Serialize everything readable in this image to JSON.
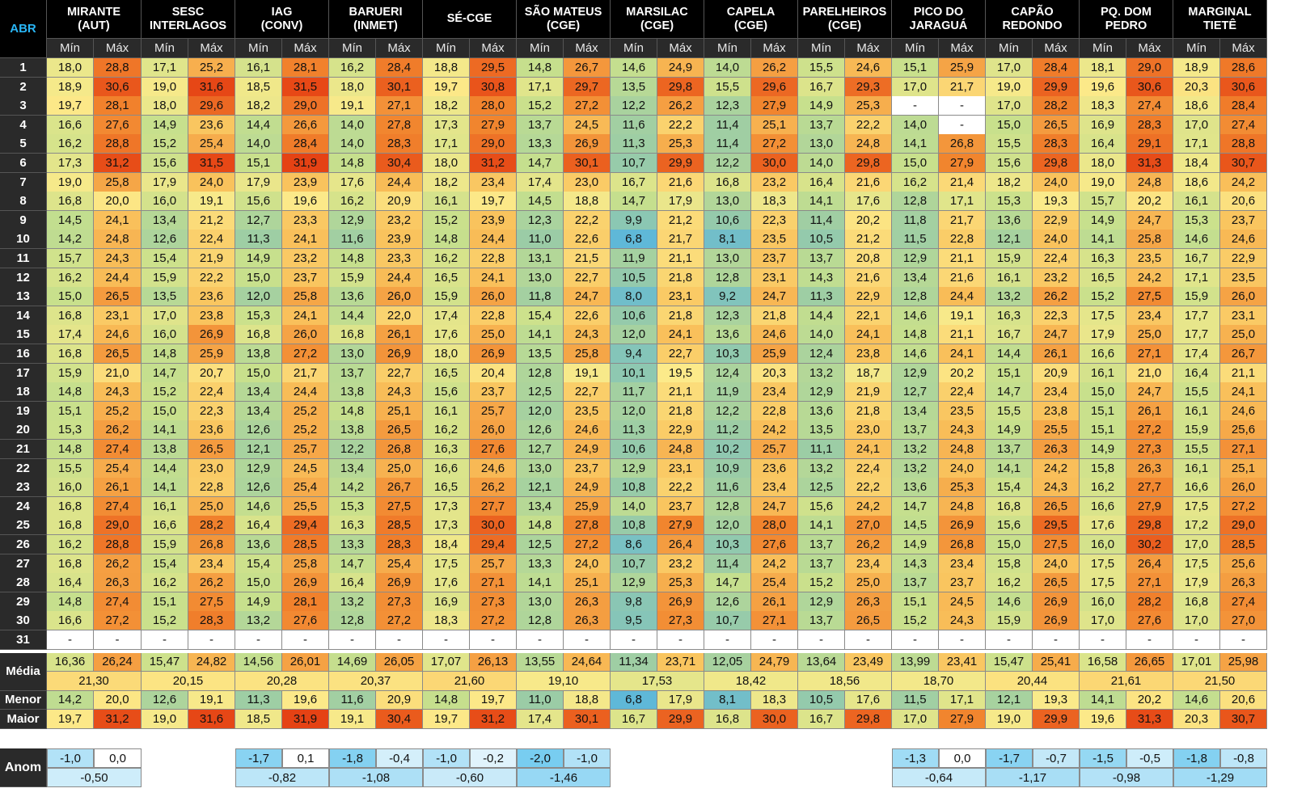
{
  "corner_label": "ABR",
  "col_min_label": "Mín",
  "col_max_label": "Máx",
  "stations": [
    {
      "name": [
        "MIRANTE",
        "(AUT)"
      ]
    },
    {
      "name": [
        "SESC",
        "INTERLAGOS"
      ]
    },
    {
      "name": [
        "IAG",
        "(CONV)"
      ]
    },
    {
      "name": [
        "BARUERI",
        "(INMET)"
      ]
    },
    {
      "name": [
        "SÉ-CGE"
      ]
    },
    {
      "name": [
        "SÃO MATEUS",
        "(CGE)"
      ]
    },
    {
      "name": [
        "MARSILAC",
        "(CGE)"
      ]
    },
    {
      "name": [
        "CAPELA",
        "(CGE)"
      ]
    },
    {
      "name": [
        "PARELHEIROS",
        "(CGE)"
      ]
    },
    {
      "name": [
        "PICO DO",
        "JARAGUÁ"
      ]
    },
    {
      "name": [
        "CAPÃO",
        "REDONDO"
      ]
    },
    {
      "name": [
        "PQ. DOM",
        "PEDRO"
      ]
    },
    {
      "name": [
        "MARGINAL",
        "TIETÊ"
      ]
    }
  ],
  "days": [
    "1",
    "2",
    "3",
    "4",
    "5",
    "6",
    "7",
    "8",
    "9",
    "10",
    "11",
    "12",
    "13",
    "14",
    "15",
    "16",
    "17",
    "18",
    "19",
    "20",
    "21",
    "22",
    "23",
    "24",
    "25",
    "26",
    "27",
    "28",
    "29",
    "30",
    "31"
  ],
  "rows": [
    [
      "18,0",
      "28,8",
      "17,1",
      "25,2",
      "16,1",
      "28,1",
      "16,2",
      "28,4",
      "18,8",
      "29,5",
      "14,8",
      "26,7",
      "14,6",
      "24,9",
      "14,0",
      "26,2",
      "15,5",
      "24,6",
      "15,1",
      "25,9",
      "17,0",
      "28,4",
      "18,1",
      "29,0",
      "18,9",
      "28,6"
    ],
    [
      "18,9",
      "30,6",
      "19,0",
      "31,6",
      "18,5",
      "31,5",
      "18,0",
      "30,1",
      "19,7",
      "30,8",
      "17,1",
      "29,7",
      "13,5",
      "29,8",
      "15,5",
      "29,6",
      "16,7",
      "29,3",
      "17,0",
      "21,7",
      "19,0",
      "29,9",
      "19,6",
      "30,6",
      "20,3",
      "30,6"
    ],
    [
      "19,7",
      "28,1",
      "18,0",
      "29,6",
      "18,2",
      "29,0",
      "19,1",
      "27,1",
      "18,2",
      "28,0",
      "15,2",
      "27,2",
      "12,2",
      "26,2",
      "12,3",
      "27,9",
      "14,9",
      "25,3",
      "-",
      "-",
      "17,0",
      "28,2",
      "18,3",
      "27,4",
      "18,6",
      "28,4"
    ],
    [
      "16,6",
      "27,6",
      "14,9",
      "23,6",
      "14,4",
      "26,6",
      "14,0",
      "27,8",
      "17,3",
      "27,9",
      "13,7",
      "24,5",
      "11,6",
      "22,2",
      "11,4",
      "25,1",
      "13,7",
      "22,2",
      "14,0",
      "-",
      "15,0",
      "26,5",
      "16,9",
      "28,3",
      "17,0",
      "27,4"
    ],
    [
      "16,2",
      "28,8",
      "15,2",
      "25,4",
      "14,0",
      "28,4",
      "14,0",
      "28,3",
      "17,1",
      "29,0",
      "13,3",
      "26,9",
      "11,3",
      "25,3",
      "11,4",
      "27,2",
      "13,0",
      "24,8",
      "14,1",
      "26,8",
      "15,5",
      "28,3",
      "16,4",
      "29,1",
      "17,1",
      "28,8"
    ],
    [
      "17,3",
      "31,2",
      "15,6",
      "31,5",
      "15,1",
      "31,9",
      "14,8",
      "30,4",
      "18,0",
      "31,2",
      "14,7",
      "30,1",
      "10,7",
      "29,9",
      "12,2",
      "30,0",
      "14,0",
      "29,8",
      "15,0",
      "27,9",
      "15,6",
      "29,8",
      "18,0",
      "31,3",
      "18,4",
      "30,7"
    ],
    [
      "19,0",
      "25,8",
      "17,9",
      "24,0",
      "17,9",
      "23,9",
      "17,6",
      "24,4",
      "18,2",
      "23,4",
      "17,4",
      "23,0",
      "16,7",
      "21,6",
      "16,8",
      "23,2",
      "16,4",
      "21,6",
      "16,2",
      "21,4",
      "18,2",
      "24,0",
      "19,0",
      "24,8",
      "18,6",
      "24,2"
    ],
    [
      "16,8",
      "20,0",
      "16,0",
      "19,1",
      "15,6",
      "19,6",
      "16,2",
      "20,9",
      "16,1",
      "19,7",
      "14,5",
      "18,8",
      "14,7",
      "17,9",
      "13,0",
      "18,3",
      "14,1",
      "17,6",
      "12,8",
      "17,1",
      "15,3",
      "19,3",
      "15,7",
      "20,2",
      "16,1",
      "20,6"
    ],
    [
      "14,5",
      "24,1",
      "13,4",
      "21,2",
      "12,7",
      "23,3",
      "12,9",
      "23,2",
      "15,2",
      "23,9",
      "12,3",
      "22,2",
      "9,9",
      "21,2",
      "10,6",
      "22,3",
      "11,4",
      "20,2",
      "11,8",
      "21,7",
      "13,6",
      "22,9",
      "14,9",
      "24,7",
      "15,3",
      "23,7"
    ],
    [
      "14,2",
      "24,8",
      "12,6",
      "22,4",
      "11,3",
      "24,1",
      "11,6",
      "23,9",
      "14,8",
      "24,4",
      "11,0",
      "22,6",
      "6,8",
      "21,7",
      "8,1",
      "23,5",
      "10,5",
      "21,2",
      "11,5",
      "22,8",
      "12,1",
      "24,0",
      "14,1",
      "25,8",
      "14,6",
      "24,6"
    ],
    [
      "15,7",
      "24,3",
      "15,4",
      "21,9",
      "14,9",
      "23,2",
      "14,8",
      "23,3",
      "16,2",
      "22,8",
      "13,1",
      "21,5",
      "11,9",
      "21,1",
      "13,0",
      "23,7",
      "13,7",
      "20,8",
      "12,9",
      "21,1",
      "15,9",
      "22,4",
      "16,3",
      "23,5",
      "16,7",
      "22,9"
    ],
    [
      "16,2",
      "24,4",
      "15,9",
      "22,2",
      "15,0",
      "23,7",
      "15,9",
      "24,4",
      "16,5",
      "24,1",
      "13,0",
      "22,7",
      "10,5",
      "21,8",
      "12,8",
      "23,1",
      "14,3",
      "21,6",
      "13,4",
      "21,6",
      "16,1",
      "23,2",
      "16,5",
      "24,2",
      "17,1",
      "23,5"
    ],
    [
      "15,0",
      "26,5",
      "13,5",
      "23,6",
      "12,0",
      "25,8",
      "13,6",
      "26,0",
      "15,9",
      "26,0",
      "11,8",
      "24,7",
      "8,0",
      "23,1",
      "9,2",
      "24,7",
      "11,3",
      "22,9",
      "12,8",
      "24,4",
      "13,2",
      "26,2",
      "15,2",
      "27,5",
      "15,9",
      "26,0"
    ],
    [
      "16,8",
      "23,1",
      "17,0",
      "23,8",
      "15,3",
      "24,1",
      "14,4",
      "22,0",
      "17,4",
      "22,8",
      "15,4",
      "22,6",
      "10,6",
      "21,8",
      "12,3",
      "21,8",
      "14,4",
      "22,1",
      "14,6",
      "19,1",
      "16,3",
      "22,3",
      "17,5",
      "23,4",
      "17,7",
      "23,1"
    ],
    [
      "17,4",
      "24,6",
      "16,0",
      "26,9",
      "16,8",
      "26,0",
      "16,8",
      "26,1",
      "17,6",
      "25,0",
      "14,1",
      "24,3",
      "12,0",
      "24,1",
      "13,6",
      "24,6",
      "14,0",
      "24,1",
      "14,8",
      "21,1",
      "16,7",
      "24,7",
      "17,9",
      "25,0",
      "17,7",
      "25,0"
    ],
    [
      "16,8",
      "26,5",
      "14,8",
      "25,9",
      "13,8",
      "27,2",
      "13,0",
      "26,9",
      "18,0",
      "26,9",
      "13,5",
      "25,8",
      "9,4",
      "22,7",
      "10,3",
      "25,9",
      "12,4",
      "23,8",
      "14,6",
      "24,1",
      "14,4",
      "26,1",
      "16,6",
      "27,1",
      "17,4",
      "26,7"
    ],
    [
      "15,9",
      "21,0",
      "14,7",
      "20,7",
      "15,0",
      "21,7",
      "13,7",
      "22,7",
      "16,5",
      "20,4",
      "12,8",
      "19,1",
      "10,1",
      "19,5",
      "12,4",
      "20,3",
      "13,2",
      "18,7",
      "12,9",
      "20,2",
      "15,1",
      "20,9",
      "16,1",
      "21,0",
      "16,4",
      "21,1"
    ],
    [
      "14,8",
      "24,3",
      "15,2",
      "22,4",
      "13,4",
      "24,4",
      "13,8",
      "24,3",
      "15,6",
      "23,7",
      "12,5",
      "22,7",
      "11,7",
      "21,1",
      "11,9",
      "23,4",
      "12,9",
      "21,9",
      "12,7",
      "22,4",
      "14,7",
      "23,4",
      "15,0",
      "24,7",
      "15,5",
      "24,1"
    ],
    [
      "15,1",
      "25,2",
      "15,0",
      "22,3",
      "13,4",
      "25,2",
      "14,8",
      "25,1",
      "16,1",
      "25,7",
      "12,0",
      "23,5",
      "12,0",
      "21,8",
      "12,2",
      "22,8",
      "13,6",
      "21,8",
      "13,4",
      "23,5",
      "15,5",
      "23,8",
      "15,1",
      "26,1",
      "16,1",
      "24,6"
    ],
    [
      "15,3",
      "26,2",
      "14,1",
      "23,6",
      "12,6",
      "25,2",
      "13,8",
      "26,5",
      "16,2",
      "26,0",
      "12,6",
      "24,6",
      "11,3",
      "22,9",
      "11,2",
      "24,2",
      "13,5",
      "23,0",
      "13,7",
      "24,3",
      "14,9",
      "25,5",
      "15,1",
      "27,2",
      "15,9",
      "25,6"
    ],
    [
      "14,8",
      "27,4",
      "13,8",
      "26,5",
      "12,1",
      "25,7",
      "12,2",
      "26,8",
      "16,3",
      "27,6",
      "12,7",
      "24,9",
      "10,6",
      "24,8",
      "10,2",
      "25,7",
      "11,1",
      "24,1",
      "13,2",
      "24,8",
      "13,7",
      "26,3",
      "14,9",
      "27,3",
      "15,5",
      "27,1"
    ],
    [
      "15,5",
      "25,4",
      "14,4",
      "23,0",
      "12,9",
      "24,5",
      "13,4",
      "25,0",
      "16,6",
      "24,6",
      "13,0",
      "23,7",
      "12,9",
      "23,1",
      "10,9",
      "23,6",
      "13,2",
      "22,4",
      "13,2",
      "24,0",
      "14,1",
      "24,2",
      "15,8",
      "26,3",
      "16,1",
      "25,1"
    ],
    [
      "16,0",
      "26,1",
      "14,1",
      "22,8",
      "12,6",
      "25,4",
      "14,2",
      "26,7",
      "16,5",
      "26,2",
      "12,1",
      "24,9",
      "10,8",
      "22,2",
      "11,6",
      "23,4",
      "12,5",
      "22,2",
      "13,6",
      "25,3",
      "15,4",
      "24,3",
      "16,2",
      "27,7",
      "16,6",
      "26,0"
    ],
    [
      "16,8",
      "27,4",
      "16,1",
      "25,0",
      "14,6",
      "25,5",
      "15,3",
      "27,5",
      "17,3",
      "27,7",
      "13,4",
      "25,9",
      "14,0",
      "23,7",
      "12,8",
      "24,7",
      "15,6",
      "24,2",
      "14,7",
      "24,8",
      "16,8",
      "26,5",
      "16,6",
      "27,9",
      "17,5",
      "27,2"
    ],
    [
      "16,8",
      "29,0",
      "16,6",
      "28,2",
      "16,4",
      "29,4",
      "16,3",
      "28,5",
      "17,3",
      "30,0",
      "14,8",
      "27,8",
      "10,8",
      "27,9",
      "12,0",
      "28,0",
      "14,1",
      "27,0",
      "14,5",
      "26,9",
      "15,6",
      "29,5",
      "17,6",
      "29,8",
      "17,2",
      "29,0"
    ],
    [
      "16,2",
      "28,8",
      "15,9",
      "26,8",
      "13,6",
      "28,5",
      "13,3",
      "28,3",
      "18,4",
      "29,4",
      "12,5",
      "27,2",
      "8,6",
      "26,4",
      "10,3",
      "27,6",
      "13,7",
      "26,2",
      "14,9",
      "26,8",
      "15,0",
      "27,5",
      "16,0",
      "30,2",
      "17,0",
      "28,5"
    ],
    [
      "16,8",
      "26,2",
      "15,4",
      "23,4",
      "15,4",
      "25,8",
      "14,7",
      "25,4",
      "17,5",
      "25,7",
      "13,3",
      "24,0",
      "10,7",
      "23,2",
      "11,4",
      "24,2",
      "13,7",
      "23,4",
      "14,3",
      "23,4",
      "15,8",
      "24,0",
      "17,5",
      "26,4",
      "17,5",
      "25,6"
    ],
    [
      "16,4",
      "26,3",
      "16,2",
      "26,2",
      "15,0",
      "26,9",
      "16,4",
      "26,9",
      "17,6",
      "27,1",
      "14,1",
      "25,1",
      "12,9",
      "25,3",
      "14,7",
      "25,4",
      "15,2",
      "25,0",
      "13,7",
      "23,7",
      "16,2",
      "26,5",
      "17,5",
      "27,1",
      "17,9",
      "26,3"
    ],
    [
      "14,8",
      "27,4",
      "15,1",
      "27,5",
      "14,9",
      "28,1",
      "13,2",
      "27,3",
      "16,9",
      "27,3",
      "13,0",
      "26,3",
      "9,8",
      "26,9",
      "12,6",
      "26,1",
      "12,9",
      "26,3",
      "15,1",
      "24,5",
      "14,6",
      "26,9",
      "16,0",
      "28,2",
      "16,8",
      "27,4"
    ],
    [
      "16,6",
      "27,2",
      "15,2",
      "28,3",
      "13,2",
      "27,6",
      "12,8",
      "27,2",
      "18,3",
      "27,2",
      "12,8",
      "26,3",
      "9,5",
      "27,3",
      "10,7",
      "27,1",
      "13,7",
      "26,5",
      "15,2",
      "24,3",
      "15,9",
      "26,9",
      "17,0",
      "27,6",
      "17,0",
      "27,0"
    ],
    [
      "-",
      "-",
      "-",
      "-",
      "-",
      "-",
      "-",
      "-",
      "-",
      "-",
      "-",
      "-",
      "-",
      "-",
      "-",
      "-",
      "-",
      "-",
      "-",
      "-",
      "-",
      "-",
      "-",
      "-",
      "-",
      "-"
    ]
  ],
  "summary": {
    "media_label": "Média",
    "media": [
      "16,36",
      "26,24",
      "15,47",
      "24,82",
      "14,56",
      "26,01",
      "14,69",
      "26,05",
      "17,07",
      "26,13",
      "13,55",
      "24,64",
      "11,34",
      "23,71",
      "12,05",
      "24,79",
      "13,64",
      "23,49",
      "13,99",
      "23,41",
      "15,47",
      "25,41",
      "16,58",
      "26,65",
      "17,01",
      "25,98"
    ],
    "media_geral": [
      "21,30",
      "20,15",
      "20,28",
      "20,37",
      "21,60",
      "19,10",
      "17,53",
      "18,42",
      "18,56",
      "18,70",
      "20,44",
      "21,61",
      "21,50"
    ],
    "menor_label": "Menor",
    "menor": [
      "14,2",
      "20,0",
      "12,6",
      "19,1",
      "11,3",
      "19,6",
      "11,6",
      "20,9",
      "14,8",
      "19,7",
      "11,0",
      "18,8",
      "6,8",
      "17,9",
      "8,1",
      "18,3",
      "10,5",
      "17,6",
      "11,5",
      "17,1",
      "12,1",
      "19,3",
      "14,1",
      "20,2",
      "14,6",
      "20,6"
    ],
    "maior_label": "Maior",
    "maior": [
      "19,7",
      "31,2",
      "19,0",
      "31,6",
      "18,5",
      "31,9",
      "19,1",
      "30,4",
      "19,7",
      "31,2",
      "17,4",
      "30,1",
      "16,7",
      "29,9",
      "16,8",
      "30,0",
      "16,7",
      "29,8",
      "17,0",
      "27,9",
      "19,0",
      "29,9",
      "19,6",
      "31,3",
      "20,3",
      "30,7"
    ]
  },
  "anomaly": {
    "label": "Anom",
    "values": [
      [
        "-1,0",
        "0,0",
        "-0,50"
      ],
      null,
      [
        "-1,7",
        "0,1",
        "-0,82"
      ],
      [
        "-1,8",
        "-0,4",
        "-1,08"
      ],
      [
        "-1,0",
        "-0,2",
        "-0,60"
      ],
      [
        "-2,0",
        "-1,0",
        "-1,46"
      ],
      null,
      null,
      null,
      [
        "-1,3",
        "0,0",
        "-0,64"
      ],
      [
        "-1,7",
        "-0,7",
        "-1,17"
      ],
      [
        "-1,5",
        "-0,5",
        "-0,98"
      ],
      [
        "-1,8",
        "-0,8",
        "-1,29"
      ]
    ]
  },
  "colors": {
    "header_bg": "#000000",
    "subheader_bg": "#2a2a2a",
    "corner_text": "#29b6f6",
    "cold": "#4fb3d9",
    "mid_green": "#9ccc8a",
    "warm_yellow": "#fbe88a",
    "hot_red": "#e8411b",
    "anom_fill": "#b3e5fc"
  }
}
